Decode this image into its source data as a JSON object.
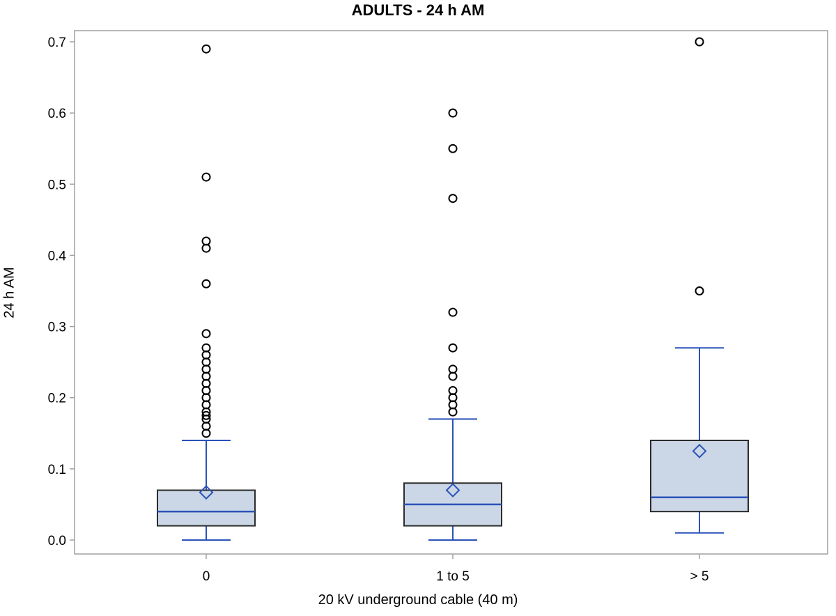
{
  "chart_data": {
    "type": "box",
    "title": "ADULTS - 24 h AM",
    "xlabel": "20 kV underground cable (40 m)",
    "ylabel": "24 h AM",
    "ylim": [
      0.0,
      0.7
    ],
    "yticks": [
      "0.0",
      "0.1",
      "0.2",
      "0.3",
      "0.4",
      "0.5",
      "0.6",
      "0.7"
    ],
    "categories": [
      "0",
      "1 to 5",
      "> 5"
    ],
    "boxes": [
      {
        "category": "0",
        "whisker_low": 0.0,
        "q1": 0.02,
        "median": 0.04,
        "mean": 0.067,
        "q3": 0.07,
        "whisker_high": 0.14,
        "outliers": [
          0.15,
          0.16,
          0.17,
          0.175,
          0.18,
          0.19,
          0.2,
          0.21,
          0.22,
          0.23,
          0.24,
          0.25,
          0.26,
          0.27,
          0.29,
          0.36,
          0.41,
          0.42,
          0.51,
          0.69
        ]
      },
      {
        "category": "1 to 5",
        "whisker_low": 0.0,
        "q1": 0.02,
        "median": 0.05,
        "mean": 0.07,
        "q3": 0.08,
        "whisker_high": 0.17,
        "outliers": [
          0.18,
          0.19,
          0.2,
          0.21,
          0.23,
          0.24,
          0.27,
          0.32,
          0.48,
          0.55,
          0.6
        ]
      },
      {
        "category": "> 5",
        "whisker_low": 0.01,
        "q1": 0.04,
        "median": 0.06,
        "mean": 0.125,
        "q3": 0.14,
        "whisker_high": 0.27,
        "outliers": [
          0.35,
          0.7
        ]
      }
    ],
    "colors": {
      "box_fill": "#cbd6e6",
      "box_edge": "#2b2b2b",
      "whisker": "#2a52b8",
      "marker": "#000000",
      "frame": "#a0a0a0"
    }
  }
}
